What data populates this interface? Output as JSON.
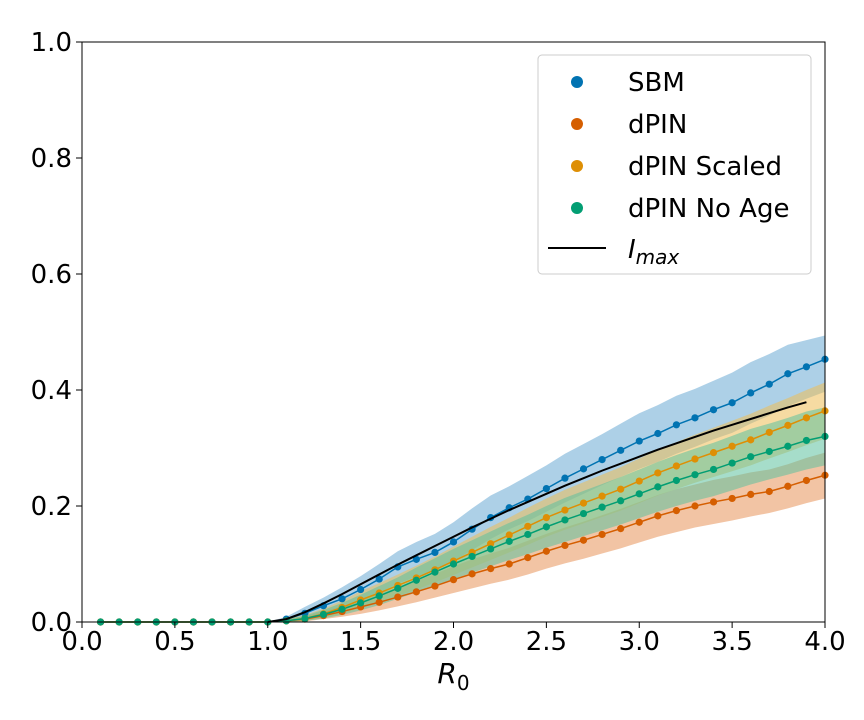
{
  "chart_data": {
    "type": "line",
    "xlabel": "R",
    "xlabel_sub": "0",
    "ylabel": "",
    "xlim": [
      0.0,
      4.0
    ],
    "ylim": [
      0.0,
      1.0
    ],
    "xticks": [
      "0.0",
      "0.5",
      "1.0",
      "1.5",
      "2.0",
      "2.5",
      "3.0",
      "3.5",
      "4.0"
    ],
    "yticks": [
      "0.0",
      "0.2",
      "0.4",
      "0.6",
      "0.8",
      "1.0"
    ],
    "grid": false,
    "legend_position": "top-right",
    "x": [
      0.1,
      0.2,
      0.3,
      0.4,
      0.5,
      0.6,
      0.7,
      0.8,
      0.9,
      1.0,
      1.1,
      1.2,
      1.3,
      1.4,
      1.5,
      1.6,
      1.7,
      1.8,
      1.9,
      2.0,
      2.1,
      2.2,
      2.3,
      2.4,
      2.5,
      2.6,
      2.7,
      2.8,
      2.9,
      3.0,
      3.1,
      3.2,
      3.3,
      3.4,
      3.5,
      3.6,
      3.7,
      3.8,
      3.9,
      4.0
    ],
    "series": [
      {
        "name": "SBM",
        "color": "#0173b2",
        "band_color": "#6aa9d4",
        "values": [
          0,
          0,
          0,
          0,
          0,
          0,
          0,
          0,
          0,
          0,
          0.005,
          0.015,
          0.028,
          0.04,
          0.056,
          0.074,
          0.095,
          0.108,
          0.12,
          0.138,
          0.16,
          0.18,
          0.197,
          0.212,
          0.23,
          0.248,
          0.264,
          0.28,
          0.296,
          0.312,
          0.325,
          0.34,
          0.352,
          0.366,
          0.378,
          0.395,
          0.41,
          0.428,
          0.44,
          0.453
        ],
        "lower": [
          0,
          0,
          0,
          0,
          0,
          0,
          0,
          0,
          0,
          0,
          0.002,
          0.006,
          0.014,
          0.022,
          0.035,
          0.05,
          0.066,
          0.078,
          0.09,
          0.105,
          0.124,
          0.143,
          0.16,
          0.174,
          0.19,
          0.206,
          0.221,
          0.236,
          0.25,
          0.264,
          0.276,
          0.29,
          0.302,
          0.315,
          0.326,
          0.342,
          0.356,
          0.372,
          0.385,
          0.397
        ],
        "upper": [
          0,
          0,
          0,
          0,
          0,
          0,
          0,
          0,
          0,
          0,
          0.009,
          0.026,
          0.042,
          0.06,
          0.079,
          0.1,
          0.122,
          0.138,
          0.152,
          0.172,
          0.196,
          0.218,
          0.234,
          0.252,
          0.27,
          0.29,
          0.307,
          0.324,
          0.342,
          0.36,
          0.374,
          0.39,
          0.402,
          0.416,
          0.43,
          0.448,
          0.462,
          0.478,
          0.486,
          0.494
        ]
      },
      {
        "name": "dPIN",
        "color": "#d55e00",
        "band_color": "#e8935a",
        "values": [
          0,
          0,
          0,
          0,
          0,
          0,
          0,
          0,
          0,
          0,
          0.002,
          0.005,
          0.011,
          0.018,
          0.026,
          0.034,
          0.043,
          0.052,
          0.062,
          0.073,
          0.083,
          0.092,
          0.1,
          0.111,
          0.122,
          0.132,
          0.141,
          0.151,
          0.161,
          0.172,
          0.183,
          0.192,
          0.2,
          0.207,
          0.213,
          0.22,
          0.225,
          0.234,
          0.244,
          0.253
        ],
        "lower": [
          0,
          0,
          0,
          0,
          0,
          0,
          0,
          0,
          0,
          0,
          0.0,
          0.001,
          0.005,
          0.009,
          0.014,
          0.02,
          0.027,
          0.034,
          0.042,
          0.05,
          0.058,
          0.066,
          0.073,
          0.082,
          0.092,
          0.101,
          0.109,
          0.118,
          0.127,
          0.137,
          0.147,
          0.155,
          0.163,
          0.169,
          0.175,
          0.182,
          0.188,
          0.196,
          0.205,
          0.213
        ],
        "upper": [
          0,
          0,
          0,
          0,
          0,
          0,
          0,
          0,
          0,
          0,
          0.005,
          0.01,
          0.018,
          0.028,
          0.038,
          0.049,
          0.06,
          0.071,
          0.083,
          0.096,
          0.108,
          0.118,
          0.128,
          0.14,
          0.152,
          0.163,
          0.173,
          0.184,
          0.195,
          0.207,
          0.219,
          0.229,
          0.237,
          0.245,
          0.251,
          0.258,
          0.263,
          0.272,
          0.283,
          0.292
        ]
      },
      {
        "name": "dPIN Scaled",
        "color": "#de8f05",
        "band_color": "#eebd56",
        "values": [
          0,
          0,
          0,
          0,
          0,
          0,
          0,
          0,
          0,
          0,
          0.002,
          0.006,
          0.014,
          0.025,
          0.038,
          0.05,
          0.063,
          0.076,
          0.09,
          0.105,
          0.12,
          0.135,
          0.15,
          0.165,
          0.18,
          0.193,
          0.205,
          0.217,
          0.229,
          0.243,
          0.257,
          0.269,
          0.281,
          0.292,
          0.303,
          0.314,
          0.327,
          0.339,
          0.352,
          0.364
        ],
        "lower": [
          0,
          0,
          0,
          0,
          0,
          0,
          0,
          0,
          0,
          0,
          0.0,
          0.002,
          0.007,
          0.014,
          0.024,
          0.034,
          0.045,
          0.056,
          0.068,
          0.081,
          0.094,
          0.107,
          0.12,
          0.133,
          0.147,
          0.159,
          0.17,
          0.181,
          0.192,
          0.205,
          0.218,
          0.229,
          0.24,
          0.25,
          0.26,
          0.27,
          0.282,
          0.293,
          0.305,
          0.316
        ],
        "upper": [
          0,
          0,
          0,
          0,
          0,
          0,
          0,
          0,
          0,
          0,
          0.005,
          0.012,
          0.023,
          0.037,
          0.053,
          0.067,
          0.082,
          0.097,
          0.113,
          0.13,
          0.147,
          0.164,
          0.18,
          0.197,
          0.213,
          0.228,
          0.241,
          0.254,
          0.267,
          0.282,
          0.297,
          0.31,
          0.323,
          0.335,
          0.347,
          0.359,
          0.373,
          0.386,
          0.4,
          0.413
        ]
      },
      {
        "name": "dPIN No Age",
        "color": "#029e73",
        "band_color": "#5cc19f",
        "values": [
          0,
          0,
          0,
          0,
          0,
          0,
          0,
          0,
          0,
          0,
          0.002,
          0.006,
          0.013,
          0.022,
          0.033,
          0.045,
          0.058,
          0.072,
          0.086,
          0.1,
          0.113,
          0.126,
          0.139,
          0.151,
          0.164,
          0.176,
          0.187,
          0.198,
          0.209,
          0.221,
          0.233,
          0.244,
          0.254,
          0.263,
          0.274,
          0.285,
          0.294,
          0.303,
          0.313,
          0.32
        ],
        "lower": [
          0,
          0,
          0,
          0,
          0,
          0,
          0,
          0,
          0,
          0,
          0.0,
          0.002,
          0.006,
          0.012,
          0.02,
          0.029,
          0.04,
          0.051,
          0.062,
          0.074,
          0.085,
          0.096,
          0.107,
          0.117,
          0.128,
          0.138,
          0.148,
          0.158,
          0.168,
          0.179,
          0.19,
          0.2,
          0.209,
          0.217,
          0.227,
          0.237,
          0.246,
          0.254,
          0.263,
          0.27
        ],
        "upper": [
          0,
          0,
          0,
          0,
          0,
          0,
          0,
          0,
          0,
          0,
          0.005,
          0.011,
          0.021,
          0.033,
          0.047,
          0.062,
          0.077,
          0.094,
          0.11,
          0.126,
          0.141,
          0.156,
          0.171,
          0.185,
          0.2,
          0.214,
          0.226,
          0.238,
          0.25,
          0.263,
          0.276,
          0.288,
          0.299,
          0.309,
          0.321,
          0.333,
          0.342,
          0.352,
          0.363,
          0.37
        ]
      }
    ],
    "imax": {
      "name": "I",
      "name_sub": "max",
      "color": "#000000",
      "x": [
        1.0,
        1.1,
        1.2,
        1.3,
        1.4,
        1.5,
        1.6,
        1.7,
        1.8,
        1.9,
        2.0,
        2.1,
        2.2,
        2.3,
        2.4,
        2.5,
        2.6,
        2.7,
        2.8,
        2.9,
        3.0,
        3.1,
        3.2,
        3.3,
        3.4,
        3.5,
        3.6,
        3.7,
        3.8,
        3.9
      ],
      "y": [
        0.0,
        0.005,
        0.017,
        0.032,
        0.048,
        0.065,
        0.082,
        0.099,
        0.115,
        0.131,
        0.147,
        0.163,
        0.178,
        0.193,
        0.207,
        0.221,
        0.235,
        0.248,
        0.261,
        0.273,
        0.285,
        0.297,
        0.308,
        0.319,
        0.33,
        0.34,
        0.35,
        0.36,
        0.37,
        0.379
      ]
    }
  }
}
